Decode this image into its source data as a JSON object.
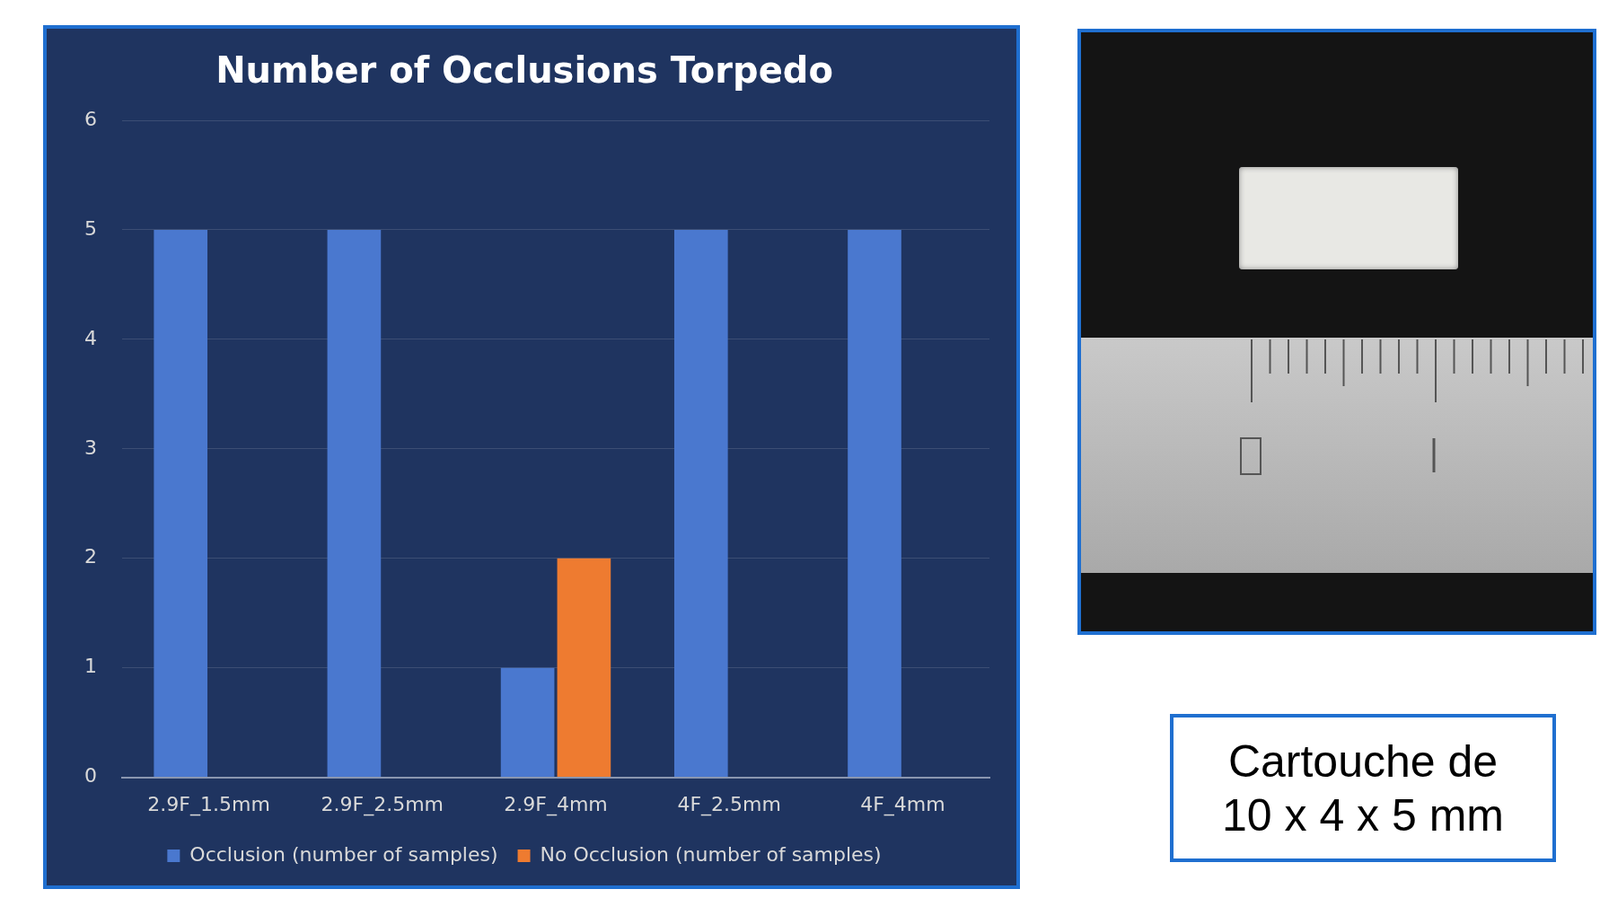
{
  "chart_data": {
    "type": "bar",
    "title": "Number of Occlusions Torpedo",
    "categories": [
      "2.9F_1.5mm",
      "2.9F_2.5mm",
      "2.9F_4mm",
      "4F_2.5mm",
      "4F_4mm"
    ],
    "series": [
      {
        "name": "Occlusion (number of samples)",
        "color": "#4a78cf",
        "values": [
          5,
          5,
          1,
          5,
          5
        ]
      },
      {
        "name": "No Occlusion (number of samples)",
        "color": "#ee7b30",
        "values": [
          0,
          0,
          2,
          0,
          0
        ]
      }
    ],
    "ylim": [
      0,
      6
    ],
    "yticks": [
      0,
      1,
      2,
      3,
      4,
      5,
      6
    ],
    "grid": true,
    "legend": "bottom"
  },
  "caption": [
    "Cartouche de",
    "10 x 4 x 5 mm"
  ]
}
